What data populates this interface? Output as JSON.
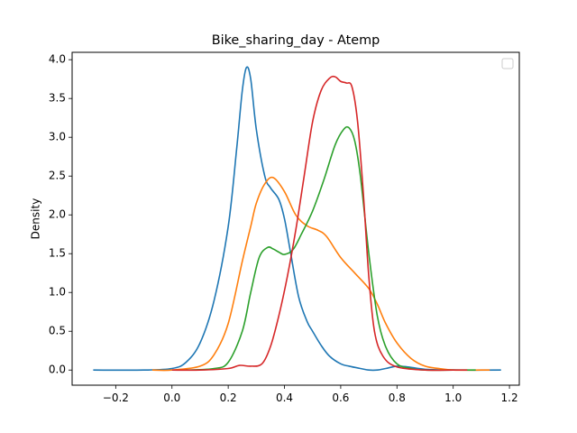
{
  "chart_data": {
    "type": "line",
    "title": "Bike_sharing_day - Atemp",
    "xlabel": "",
    "ylabel": "Density",
    "xlim": [
      -0.355,
      1.235
    ],
    "ylim": [
      -0.195,
      4.095
    ],
    "xticks": [
      -0.2,
      0.0,
      0.2,
      0.4,
      0.6,
      0.8,
      1.0,
      1.2
    ],
    "xtick_labels": [
      "−0.2",
      "0.0",
      "0.2",
      "0.4",
      "0.6",
      "0.8",
      "1.0",
      "1.2"
    ],
    "yticks": [
      0.0,
      0.5,
      1.0,
      1.5,
      2.0,
      2.5,
      3.0,
      3.5,
      4.0
    ],
    "ytick_labels": [
      "0.0",
      "0.5",
      "1.0",
      "1.5",
      "2.0",
      "2.5",
      "3.0",
      "3.5",
      "4.0"
    ],
    "grid": false,
    "legend": {
      "position": "top-right",
      "entries": []
    },
    "series": [
      {
        "color": "#1f77b4",
        "x": [
          -0.28,
          -0.1,
          0.0,
          0.05,
          0.1,
          0.15,
          0.2,
          0.23,
          0.25,
          0.265,
          0.28,
          0.3,
          0.33,
          0.35,
          0.38,
          0.4,
          0.42,
          0.45,
          0.48,
          0.5,
          0.53,
          0.56,
          0.6,
          0.63,
          0.67,
          0.7,
          0.73,
          0.76,
          0.8,
          0.84,
          0.9,
          1.0,
          1.17
        ],
        "y": [
          0.0,
          0.0,
          0.02,
          0.1,
          0.35,
          0.9,
          1.85,
          2.85,
          3.6,
          3.9,
          3.75,
          3.1,
          2.5,
          2.35,
          2.2,
          1.95,
          1.55,
          0.95,
          0.63,
          0.5,
          0.32,
          0.18,
          0.08,
          0.05,
          0.02,
          0.0,
          0.0,
          0.02,
          0.05,
          0.04,
          0.01,
          0.0,
          0.0
        ]
      },
      {
        "color": "#ff7f0e",
        "x": [
          -0.07,
          0.0,
          0.1,
          0.15,
          0.2,
          0.25,
          0.28,
          0.3,
          0.33,
          0.36,
          0.4,
          0.44,
          0.48,
          0.52,
          0.55,
          0.6,
          0.65,
          0.7,
          0.73,
          0.76,
          0.8,
          0.85,
          0.9,
          0.95,
          1.0,
          1.1,
          1.13
        ],
        "y": [
          0.0,
          0.0,
          0.05,
          0.2,
          0.6,
          1.4,
          1.85,
          2.15,
          2.4,
          2.48,
          2.3,
          2.0,
          1.86,
          1.8,
          1.72,
          1.45,
          1.25,
          1.05,
          0.85,
          0.6,
          0.35,
          0.15,
          0.05,
          0.02,
          0.0,
          0.0,
          0.0
        ]
      },
      {
        "color": "#2ca02c",
        "x": [
          0.05,
          0.15,
          0.2,
          0.25,
          0.28,
          0.31,
          0.34,
          0.36,
          0.38,
          0.4,
          0.43,
          0.46,
          0.5,
          0.54,
          0.58,
          0.61,
          0.63,
          0.65,
          0.67,
          0.7,
          0.73,
          0.76,
          0.8,
          0.85,
          0.9,
          1.0,
          1.08
        ],
        "y": [
          0.0,
          0.02,
          0.1,
          0.5,
          1.0,
          1.45,
          1.58,
          1.56,
          1.52,
          1.49,
          1.55,
          1.75,
          2.05,
          2.45,
          2.9,
          3.1,
          3.12,
          2.95,
          2.5,
          1.5,
          0.7,
          0.3,
          0.08,
          0.02,
          0.0,
          0.0,
          0.0
        ]
      },
      {
        "color": "#d62728",
        "x": [
          0.0,
          0.1,
          0.2,
          0.24,
          0.28,
          0.32,
          0.35,
          0.38,
          0.41,
          0.44,
          0.47,
          0.5,
          0.53,
          0.56,
          0.58,
          0.6,
          0.62,
          0.64,
          0.66,
          0.68,
          0.7,
          0.72,
          0.75,
          0.8,
          0.9,
          1.0,
          1.05
        ],
        "y": [
          0.0,
          0.0,
          0.02,
          0.06,
          0.05,
          0.08,
          0.3,
          0.7,
          1.2,
          1.8,
          2.5,
          3.2,
          3.6,
          3.76,
          3.78,
          3.72,
          3.7,
          3.65,
          3.2,
          2.3,
          1.2,
          0.5,
          0.18,
          0.04,
          0.0,
          0.0,
          0.0
        ]
      }
    ]
  }
}
